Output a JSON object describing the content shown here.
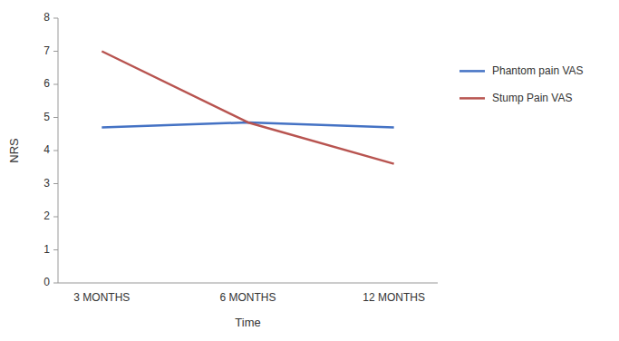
{
  "chart_data": {
    "type": "line",
    "categories": [
      "3 MONTHS",
      "6 MONTHS",
      "12 MONTHS"
    ],
    "series": [
      {
        "name": "Phantom pain VAS",
        "color": "#4472C4",
        "values": [
          4.7,
          4.85,
          4.7
        ]
      },
      {
        "name": "Stump Pain VAS",
        "color": "#B85450",
        "values": [
          7.0,
          4.85,
          3.6
        ]
      }
    ],
    "xlabel": "Time",
    "ylabel": "NRS",
    "ylim": [
      0,
      8
    ],
    "yticks": [
      0,
      1,
      2,
      3,
      4,
      5,
      6,
      7,
      8
    ],
    "grid": false,
    "legend": "right"
  }
}
